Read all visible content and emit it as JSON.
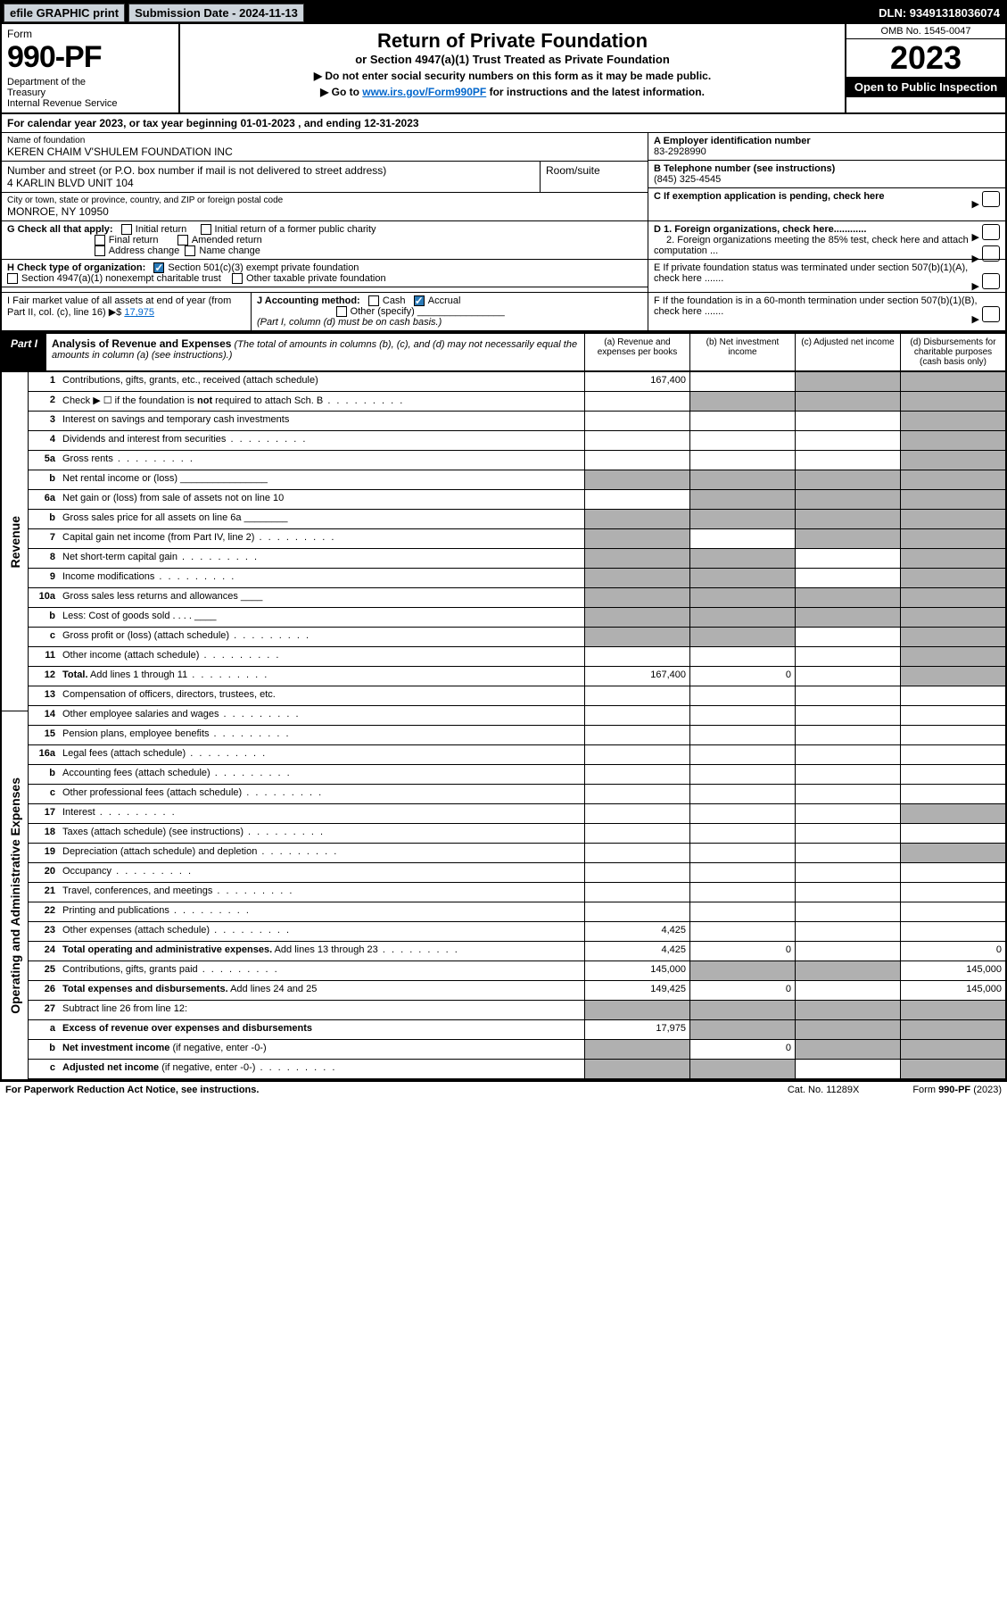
{
  "topbar": {
    "efile": "efile GRAPHIC print",
    "submission": "Submission Date - 2024-11-13",
    "dln": "DLN: 93491318036074"
  },
  "header": {
    "form": "Form",
    "number": "990-PF",
    "dept": "Department of the Treasury\nInternal Revenue Service",
    "title": "Return of Private Foundation",
    "sub1": "or Section 4947(a)(1) Trust Treated as Private Foundation",
    "sub2a": "▶ Do not enter social security numbers on this form as it may be made public.",
    "sub2b": "▶ Go to ",
    "link": "www.irs.gov/Form990PF",
    "sub2c": " for instructions and the latest information.",
    "omb": "OMB No. 1545-0047",
    "year": "2023",
    "open": "Open to Public Inspection"
  },
  "cal": "For calendar year 2023, or tax year beginning 01-01-2023                              , and ending 12-31-2023",
  "info": {
    "name_lbl": "Name of foundation",
    "name": "KEREN CHAIM V'SHULEM FOUNDATION INC",
    "addr_lbl": "Number and street (or P.O. box number if mail is not delivered to street address)",
    "addr": "4 KARLIN BLVD UNIT 104",
    "room_lbl": "Room/suite",
    "city_lbl": "City or town, state or province, country, and ZIP or foreign postal code",
    "city": "MONROE, NY  10950",
    "a_lbl": "A Employer identification number",
    "a_val": "83-2928990",
    "b_lbl": "B Telephone number (see instructions)",
    "b_val": "(845) 325-4545",
    "c_lbl": "C If exemption application is pending, check here"
  },
  "g": {
    "label": "G Check all that apply:",
    "o1": "Initial return",
    "o2": "Initial return of a former public charity",
    "o3": "Final return",
    "o4": "Amended return",
    "o5": "Address change",
    "o6": "Name change"
  },
  "h": {
    "label": "H Check type of organization:",
    "o1": "Section 501(c)(3) exempt private foundation",
    "o2": "Section 4947(a)(1) nonexempt charitable trust",
    "o3": "Other taxable private foundation"
  },
  "d": {
    "d1": "D 1. Foreign organizations, check here............",
    "d2": "2. Foreign organizations meeting the 85% test, check here and attach computation ..."
  },
  "e": "E  If private foundation status was terminated under section 507(b)(1)(A), check here .......",
  "i": {
    "label": "I Fair market value of all assets at end of year (from Part II, col. (c), line 16) ▶$",
    "val": "17,975"
  },
  "j": {
    "label": "J Accounting method:",
    "o1": "Cash",
    "o2": "Accrual",
    "o3": "Other (specify)",
    "note": "(Part I, column (d) must be on cash basis.)"
  },
  "f": "F  If the foundation is in a 60-month termination under section 507(b)(1)(B), check here .......",
  "part1": {
    "tag": "Part I",
    "title": "Analysis of Revenue and Expenses",
    "note": "(The total of amounts in columns (b), (c), and (d) may not necessarily equal the amounts in column (a) (see instructions).)",
    "cola": "(a)   Revenue and expenses per books",
    "colb": "(b)   Net investment income",
    "colc": "(c)   Adjusted net income",
    "cold": "(d)  Disbursements for charitable purposes (cash basis only)"
  },
  "side": {
    "rev": "Revenue",
    "exp": "Operating and Administrative Expenses"
  },
  "rows": [
    {
      "n": "1",
      "d": "Contributions, gifts, grants, etc., received (attach schedule)",
      "a": "167,400",
      "b": "",
      "c": "g",
      "dd": "g"
    },
    {
      "n": "2",
      "d": "Check ▶ ☐ if the foundation is <b>not</b> required to attach Sch. B",
      "dots": 1,
      "a": "",
      "b": "g",
      "c": "g",
      "dd": "g"
    },
    {
      "n": "3",
      "d": "Interest on savings and temporary cash investments",
      "a": "",
      "b": "",
      "c": "",
      "dd": "g"
    },
    {
      "n": "4",
      "d": "Dividends and interest from securities",
      "dots": 1,
      "a": "",
      "b": "",
      "c": "",
      "dd": "g"
    },
    {
      "n": "5a",
      "d": "Gross rents",
      "dots": 1,
      "a": "",
      "b": "",
      "c": "",
      "dd": "g"
    },
    {
      "n": "b",
      "d": "Net rental income or (loss) ________________",
      "a": "g",
      "b": "g",
      "c": "g",
      "dd": "g"
    },
    {
      "n": "6a",
      "d": "Net gain or (loss) from sale of assets not on line 10",
      "a": "",
      "b": "g",
      "c": "g",
      "dd": "g"
    },
    {
      "n": "b",
      "d": "Gross sales price for all assets on line 6a ________",
      "a": "g",
      "b": "g",
      "c": "g",
      "dd": "g"
    },
    {
      "n": "7",
      "d": "Capital gain net income (from Part IV, line 2)",
      "dots": 1,
      "a": "g",
      "b": "",
      "c": "g",
      "dd": "g"
    },
    {
      "n": "8",
      "d": "Net short-term capital gain",
      "dots": 1,
      "a": "g",
      "b": "g",
      "c": "",
      "dd": "g"
    },
    {
      "n": "9",
      "d": "Income modifications",
      "dots": 1,
      "a": "g",
      "b": "g",
      "c": "",
      "dd": "g"
    },
    {
      "n": "10a",
      "d": "Gross sales less returns and allowances ____",
      "a": "g",
      "b": "g",
      "c": "g",
      "dd": "g"
    },
    {
      "n": "b",
      "d": "Less: Cost of goods sold   .  .  .  . ____",
      "a": "g",
      "b": "g",
      "c": "g",
      "dd": "g"
    },
    {
      "n": "c",
      "d": "Gross profit or (loss) (attach schedule)",
      "dots": 1,
      "a": "g",
      "b": "g",
      "c": "",
      "dd": "g"
    },
    {
      "n": "11",
      "d": "Other income (attach schedule)",
      "dots": 1,
      "a": "",
      "b": "",
      "c": "",
      "dd": "g"
    },
    {
      "n": "12",
      "d": "<b>Total.</b> Add lines 1 through 11",
      "dots": 1,
      "a": "167,400",
      "b": "0",
      "c": "",
      "dd": "g"
    },
    {
      "n": "13",
      "d": "Compensation of officers, directors, trustees, etc.",
      "a": "",
      "b": "",
      "c": "",
      "dd": ""
    },
    {
      "n": "14",
      "d": "Other employee salaries and wages",
      "dots": 1,
      "a": "",
      "b": "",
      "c": "",
      "dd": ""
    },
    {
      "n": "15",
      "d": "Pension plans, employee benefits",
      "dots": 1,
      "a": "",
      "b": "",
      "c": "",
      "dd": ""
    },
    {
      "n": "16a",
      "d": "Legal fees (attach schedule)",
      "dots": 1,
      "a": "",
      "b": "",
      "c": "",
      "dd": ""
    },
    {
      "n": "b",
      "d": "Accounting fees (attach schedule)",
      "dots": 1,
      "a": "",
      "b": "",
      "c": "",
      "dd": ""
    },
    {
      "n": "c",
      "d": "Other professional fees (attach schedule)",
      "dots": 1,
      "a": "",
      "b": "",
      "c": "",
      "dd": ""
    },
    {
      "n": "17",
      "d": "Interest",
      "dots": 1,
      "a": "",
      "b": "",
      "c": "",
      "dd": "g"
    },
    {
      "n": "18",
      "d": "Taxes (attach schedule) (see instructions)",
      "dots": 1,
      "a": "",
      "b": "",
      "c": "",
      "dd": ""
    },
    {
      "n": "19",
      "d": "Depreciation (attach schedule) and depletion",
      "dots": 1,
      "a": "",
      "b": "",
      "c": "",
      "dd": "g"
    },
    {
      "n": "20",
      "d": "Occupancy",
      "dots": 1,
      "a": "",
      "b": "",
      "c": "",
      "dd": ""
    },
    {
      "n": "21",
      "d": "Travel, conferences, and meetings",
      "dots": 1,
      "a": "",
      "b": "",
      "c": "",
      "dd": ""
    },
    {
      "n": "22",
      "d": "Printing and publications",
      "dots": 1,
      "a": "",
      "b": "",
      "c": "",
      "dd": ""
    },
    {
      "n": "23",
      "d": "Other expenses (attach schedule)",
      "dots": 1,
      "a": "4,425",
      "b": "",
      "c": "",
      "dd": ""
    },
    {
      "n": "24",
      "d": "<b>Total operating and administrative expenses.</b> Add lines 13 through 23",
      "dots": 1,
      "a": "4,425",
      "b": "0",
      "c": "",
      "dd": "0"
    },
    {
      "n": "25",
      "d": "Contributions, gifts, grants paid",
      "dots": 1,
      "a": "145,000",
      "b": "g",
      "c": "g",
      "dd": "145,000"
    },
    {
      "n": "26",
      "d": "<b>Total expenses and disbursements.</b> Add lines 24 and 25",
      "a": "149,425",
      "b": "0",
      "c": "",
      "dd": "145,000"
    },
    {
      "n": "27",
      "d": "Subtract line 26 from line 12:",
      "a": "g",
      "b": "g",
      "c": "g",
      "dd": "g"
    },
    {
      "n": "a",
      "d": "<b>Excess of revenue over expenses and disbursements</b>",
      "a": "17,975",
      "b": "g",
      "c": "g",
      "dd": "g"
    },
    {
      "n": "b",
      "d": "<b>Net investment income</b> (if negative, enter -0-)",
      "a": "g",
      "b": "0",
      "c": "g",
      "dd": "g"
    },
    {
      "n": "c",
      "d": "<b>Adjusted net income</b> (if negative, enter -0-)",
      "dots": 1,
      "a": "g",
      "b": "g",
      "c": "",
      "dd": "g"
    }
  ],
  "ftr": {
    "l": "For Paperwork Reduction Act Notice, see instructions.",
    "c": "Cat. No. 11289X",
    "r": "Form 990-PF (2023)"
  },
  "colors": {
    "grey": "#b0b0b0",
    "link": "#0066cc",
    "check": "#2b7bb9"
  }
}
